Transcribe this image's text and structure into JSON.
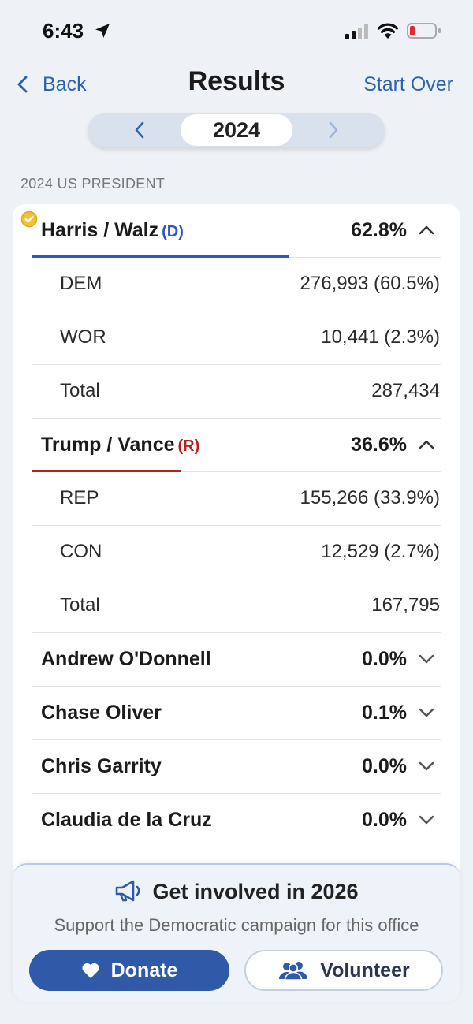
{
  "status_bar": {
    "time": "6:43"
  },
  "nav": {
    "back_label": "Back",
    "title": "Results",
    "start_over_label": "Start Over"
  },
  "year_picker": {
    "year": "2024"
  },
  "section_label": "2024 US PRESIDENT",
  "candidates": [
    {
      "name": "Harris / Walz",
      "party": "(D)",
      "percent": "62.8%",
      "expanded": true,
      "color": "#2b55c8",
      "winner": true,
      "lines": [
        {
          "label": "DEM",
          "value": "276,993 (60.5%)"
        },
        {
          "label": "WOR",
          "value": "10,441 (2.3%)"
        },
        {
          "label": "Total",
          "value": "287,434"
        }
      ]
    },
    {
      "name": "Trump / Vance",
      "party": "(R)",
      "percent": "36.6%",
      "expanded": true,
      "color": "#b2211d",
      "lines": [
        {
          "label": "REP",
          "value": "155,266 (33.9%)"
        },
        {
          "label": "CON",
          "value": "12,529 (2.7%)"
        },
        {
          "label": "Total",
          "value": "167,795"
        }
      ]
    },
    {
      "name": "Andrew O'Donnell",
      "percent": "0.0%",
      "expanded": false
    },
    {
      "name": "Chase Oliver",
      "percent": "0.1%",
      "expanded": false
    },
    {
      "name": "Chris Garrity",
      "percent": "0.0%",
      "expanded": false
    },
    {
      "name": "Claudia de la Cruz",
      "percent": "0.0%",
      "expanded": false
    }
  ],
  "cta": {
    "title": "Get involved in 2026",
    "subtitle": "Support the Democratic campaign for this office",
    "donate_label": "Donate",
    "volunteer_label": "Volunteer"
  },
  "colors": {
    "accent": "#2d63ad",
    "donate": "#2f5aa8",
    "democrat": "#2b55c8",
    "republican": "#b2211d"
  },
  "icons": [
    "location-arrow-icon",
    "signal-icon",
    "wifi-icon",
    "battery-icon",
    "back-chevron-icon",
    "prev-chevron-icon",
    "next-chevron-icon",
    "winner-check-icon",
    "chevron-up-icon",
    "chevron-down-icon",
    "megaphone-icon",
    "heart-icon",
    "people-icon"
  ]
}
